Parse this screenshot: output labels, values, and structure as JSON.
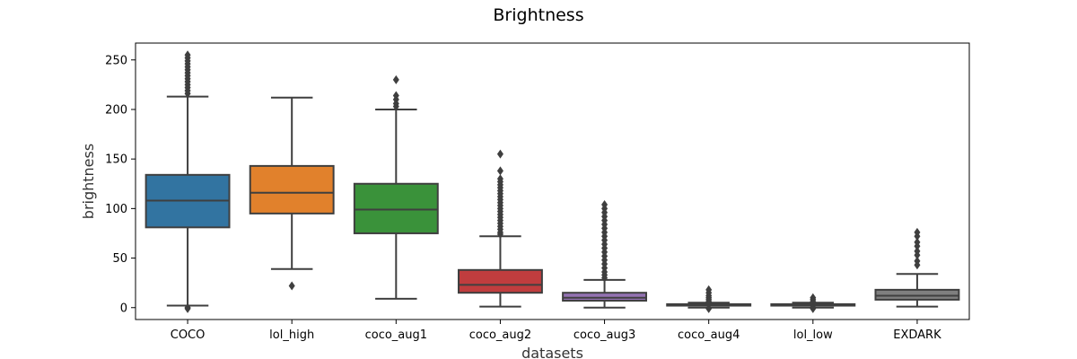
{
  "chart_data": {
    "type": "box",
    "title": "Brightness",
    "xlabel": "datasets",
    "ylabel": "brightness",
    "ylim": [
      -12,
      267
    ],
    "yticks": [
      0,
      50,
      100,
      150,
      200,
      250
    ],
    "grid": false,
    "categories": [
      "COCO",
      "lol_high",
      "coco_aug1",
      "coco_aug2",
      "coco_aug3",
      "coco_aug4",
      "lol_low",
      "EXDARK"
    ],
    "boxes": [
      {
        "category": "COCO",
        "whisker_low": 2,
        "q1": 81,
        "median": 108,
        "q3": 134,
        "whisker_high": 213,
        "outliers": [
          255,
          252,
          249,
          246,
          243,
          240,
          237,
          234,
          231,
          228,
          225,
          222,
          219,
          216,
          0,
          -1
        ],
        "color": "#3274a1"
      },
      {
        "category": "lol_high",
        "whisker_low": 39,
        "q1": 95,
        "median": 116,
        "q3": 143,
        "whisker_high": 212,
        "outliers": [
          22
        ],
        "color": "#e1812c"
      },
      {
        "category": "coco_aug1",
        "whisker_low": 9,
        "q1": 75,
        "median": 99,
        "q3": 125,
        "whisker_high": 200,
        "outliers": [
          230,
          214,
          210,
          206,
          203
        ],
        "color": "#3a923a"
      },
      {
        "category": "coco_aug2",
        "whisker_low": 1,
        "q1": 15,
        "median": 23,
        "q3": 38,
        "whisker_high": 72,
        "outliers": [
          155,
          138,
          130,
          127,
          124,
          121,
          118,
          115,
          112,
          109,
          106,
          103,
          100,
          97,
          94,
          91,
          88,
          85,
          82,
          79,
          76,
          74
        ],
        "color": "#c03d3e"
      },
      {
        "category": "coco_aug3",
        "whisker_low": 0,
        "q1": 7,
        "median": 10,
        "q3": 15,
        "whisker_high": 28,
        "outliers": [
          104,
          100,
          96,
          92,
          88,
          84,
          80,
          76,
          72,
          68,
          64,
          60,
          56,
          52,
          48,
          44,
          40,
          36,
          33,
          30
        ],
        "color": "#9372b2"
      },
      {
        "category": "coco_aug4",
        "whisker_low": 0,
        "q1": 2,
        "median": 2.5,
        "q3": 3.5,
        "whisker_high": 5,
        "outliers": [
          18,
          15,
          12,
          10,
          8,
          6,
          -1
        ],
        "color": "#845b53"
      },
      {
        "category": "lol_low",
        "whisker_low": 0,
        "q1": 2,
        "median": 2.5,
        "q3": 3.5,
        "whisker_high": 5,
        "outliers": [
          10,
          8,
          6,
          5.5,
          0,
          -1
        ],
        "color": "#d684bd"
      },
      {
        "category": "EXDARK",
        "whisker_low": 1,
        "q1": 8,
        "median": 12,
        "q3": 18,
        "whisker_high": 34,
        "outliers": [
          76,
          72,
          66,
          62,
          57,
          53,
          47,
          43
        ],
        "color": "#7f7f7f"
      }
    ]
  }
}
